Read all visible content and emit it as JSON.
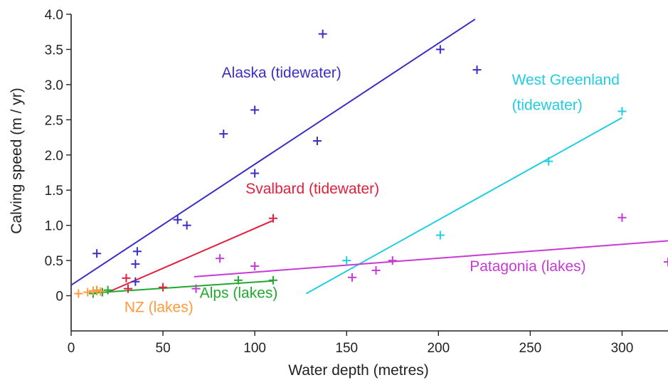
{
  "chart_data": {
    "type": "scatter",
    "title": "",
    "xlabel": "Water depth (metres)",
    "ylabel": "Calving speed (m / yr)",
    "xlim": [
      0,
      325
    ],
    "ylim": [
      -0.5,
      4.0
    ],
    "xticks": [
      0,
      50,
      100,
      150,
      200,
      250,
      300
    ],
    "xtick_labels": [
      "0",
      "50",
      "100",
      "150",
      "200",
      "250",
      "300"
    ],
    "yticks": [
      0,
      0.5,
      1.0,
      1.5,
      2.0,
      2.5,
      3.0,
      3.5,
      4.0
    ],
    "ytick_labels": [
      "0",
      "0.5",
      "1.0",
      "1.5",
      "2.0",
      "2.5",
      "3.0",
      "3.5",
      "4.0"
    ],
    "grid": false,
    "legend": "labels placed next to each series",
    "series": [
      {
        "name": "Alaska (tidewater)",
        "color": "#3a2fc4",
        "marker": "plus",
        "x": [
          14,
          35,
          35,
          36,
          58,
          63,
          83,
          100,
          100,
          134,
          137,
          201,
          221
        ],
        "y": [
          0.6,
          0.2,
          0.45,
          0.63,
          1.08,
          1.0,
          2.3,
          1.74,
          2.64,
          2.2,
          3.72,
          3.5,
          3.21
        ],
        "fit": {
          "x": [
            0,
            220
          ],
          "y": [
            0.15,
            3.93
          ]
        }
      },
      {
        "name": "Svalbard (tidewater)",
        "color": "#e0203c",
        "marker": "plus",
        "x": [
          30,
          31,
          50,
          110
        ],
        "y": [
          0.25,
          0.1,
          0.12,
          1.1
        ],
        "fit": {
          "x": [
            20,
            110
          ],
          "y": [
            0.05,
            1.07
          ]
        }
      },
      {
        "name": "West Greenland (tidewater)",
        "color": "#22cde0",
        "marker": "plus",
        "x": [
          150,
          201,
          260,
          300
        ],
        "y": [
          0.5,
          0.86,
          1.91,
          2.62
        ],
        "fit": {
          "x": [
            128,
            300
          ],
          "y": [
            0.03,
            2.53
          ]
        }
      },
      {
        "name": "Patagonia (lakes)",
        "color": "#c83ad6",
        "marker": "plus",
        "x": [
          68,
          81,
          100,
          153,
          166,
          175,
          300,
          325
        ],
        "y": [
          0.1,
          0.53,
          0.42,
          0.26,
          0.36,
          0.5,
          1.11,
          0.48
        ],
        "fit": {
          "x": [
            67,
            325
          ],
          "y": [
            0.27,
            0.78
          ]
        }
      },
      {
        "name": "Alps (lakes)",
        "color": "#22a830",
        "marker": "plus",
        "x": [
          12,
          14,
          17,
          20,
          91,
          110
        ],
        "y": [
          0.03,
          0.07,
          0.05,
          0.08,
          0.22,
          0.22
        ],
        "fit": {
          "x": [
            12,
            110
          ],
          "y": [
            0.04,
            0.21
          ]
        }
      },
      {
        "name": "NZ (lakes)",
        "color": "#ff9a3c",
        "marker": "plus",
        "x": [
          4,
          9,
          12,
          14,
          16
        ],
        "y": [
          0.03,
          0.05,
          0.07,
          0.08,
          0.06
        ],
        "fit": null
      }
    ],
    "annotations": [
      {
        "text": "Alaska (tidewater)",
        "series": "Alaska (tidewater)",
        "at": [
          82,
          3.1
        ]
      },
      {
        "text": "West Greenland",
        "series": "West Greenland (tidewater)",
        "at": [
          240,
          3.0
        ]
      },
      {
        "text": "(tidewater)",
        "series": "West Greenland (tidewater)",
        "at": [
          240,
          2.64
        ]
      },
      {
        "text": "Svalbard (tidewater)",
        "series": "Svalbard (tidewater)",
        "at": [
          95,
          1.45
        ]
      },
      {
        "text": "Patagonia (lakes)",
        "series": "Patagonia (lakes)",
        "at": [
          217,
          0.35
        ]
      },
      {
        "text": "Alps (lakes)",
        "series": "Alps (lakes)",
        "at": [
          70,
          -0.03
        ]
      },
      {
        "text": "NZ (lakes)",
        "series": "NZ (lakes)",
        "at": [
          29,
          -0.23
        ]
      }
    ],
    "axis_color": "#222222"
  }
}
